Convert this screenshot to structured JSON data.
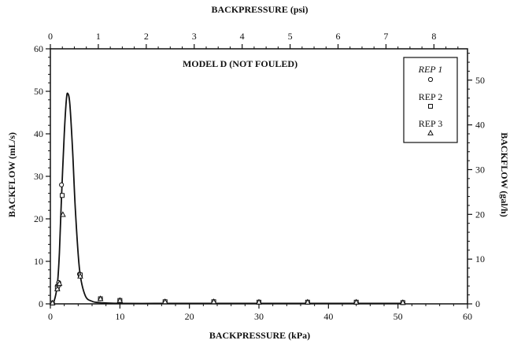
{
  "chart_data": {
    "type": "scatter",
    "title": "MODEL D (NOT FOULED)",
    "xlabel": "BACKPRESSURE (kPa)",
    "ylabel": "BACKFLOW (mL/s)",
    "x2label": "BACKPRESSURE (psi)",
    "y2label": "BACKFLOW (gal/h)",
    "xlim": [
      0,
      60
    ],
    "ylim": [
      0,
      60
    ],
    "x2lim": [
      0,
      8.7
    ],
    "y2lim": [
      0,
      57
    ],
    "xticks": [
      0,
      10,
      20,
      30,
      40,
      50,
      60
    ],
    "yticks": [
      0,
      10,
      20,
      30,
      40,
      50,
      60
    ],
    "x2ticks": [
      0,
      1,
      2,
      3,
      4,
      5,
      6,
      7,
      8
    ],
    "y2ticks": [
      0,
      10,
      20,
      30,
      40,
      50
    ],
    "legend_position": "top-right",
    "series": [
      {
        "name": "REP 1",
        "marker": "circle",
        "x": [
          0.3,
          1.0,
          1.2,
          1.6,
          4.2,
          7.2,
          10.0,
          16.5,
          23.5,
          30.0,
          37.0,
          44.0,
          50.7
        ],
        "y": [
          0.2,
          4.2,
          5.0,
          28.0,
          7.0,
          1.2,
          0.8,
          0.5,
          0.5,
          0.4,
          0.4,
          0.4,
          0.3
        ]
      },
      {
        "name": "REP 2",
        "marker": "square",
        "x": [
          0.3,
          1.0,
          1.2,
          1.7,
          4.3,
          7.2,
          10.0,
          16.5,
          23.5,
          30.0,
          37.0,
          44.0,
          50.7
        ],
        "y": [
          0.2,
          3.8,
          4.5,
          25.5,
          6.8,
          1.2,
          0.8,
          0.5,
          0.5,
          0.4,
          0.4,
          0.4,
          0.3
        ]
      },
      {
        "name": "REP 3",
        "marker": "triangle",
        "x": [
          0.3,
          1.0,
          1.3,
          1.8,
          4.3,
          7.2,
          10.0,
          16.5,
          23.5,
          30.0,
          37.0,
          44.0,
          50.7
        ],
        "y": [
          0.2,
          3.5,
          4.8,
          21.0,
          6.5,
          1.2,
          0.8,
          0.5,
          0.5,
          0.4,
          0.4,
          0.4,
          0.3
        ]
      }
    ],
    "fit_curve": {
      "x": [
        0,
        0.5,
        1.0,
        1.3,
        1.6,
        2.0,
        2.3,
        2.5,
        2.8,
        3.2,
        3.6,
        4.2,
        5.0,
        6.0,
        7.0,
        8.0,
        10.0,
        15.0,
        20.0,
        30.0,
        40.0,
        51.0
      ],
      "y": [
        0,
        0.5,
        4.5,
        12.0,
        25.0,
        40.0,
        48.0,
        49.5,
        47.0,
        36.0,
        22.0,
        8.0,
        2.0,
        0.6,
        0.3,
        0.2,
        0.1,
        0.1,
        0.1,
        0.1,
        0.1,
        0.1
      ]
    }
  }
}
